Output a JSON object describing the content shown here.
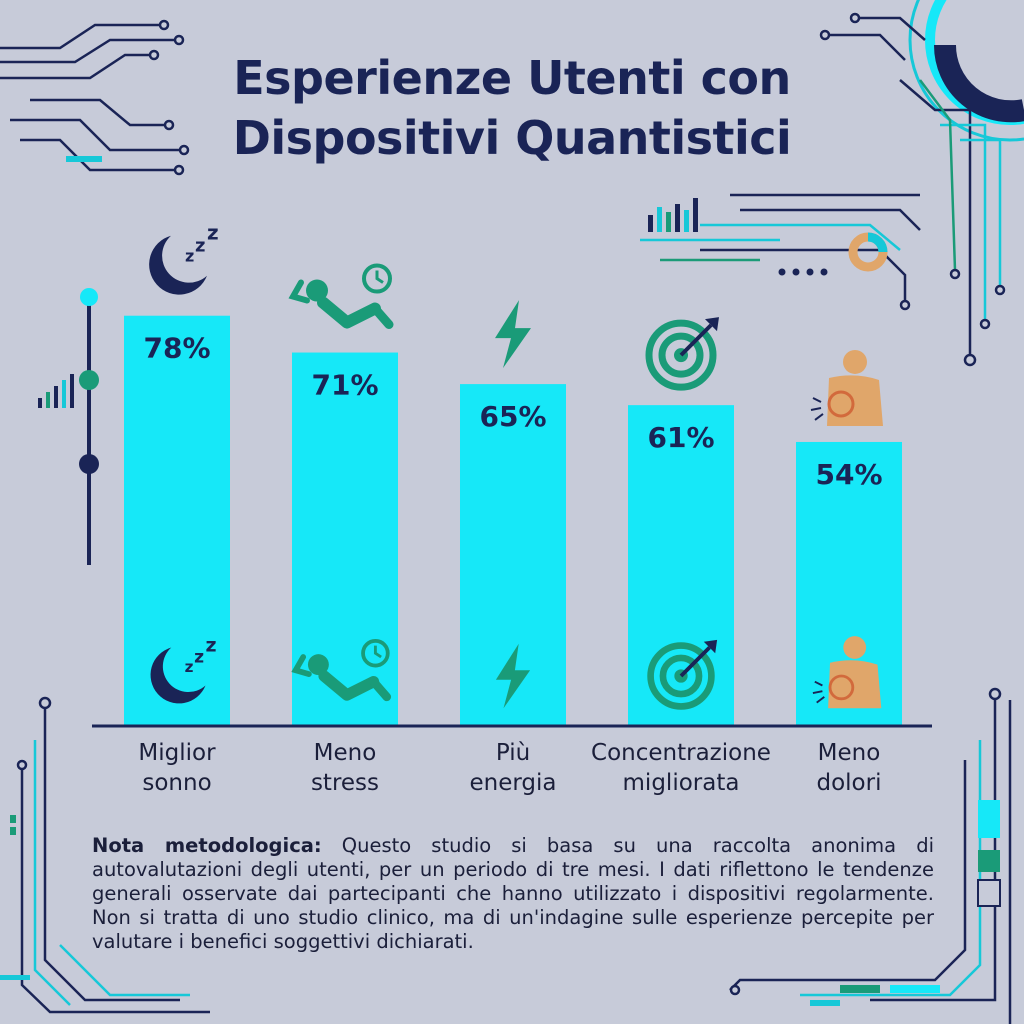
{
  "title": {
    "line1": "Esperienze Utenti con",
    "line2": "Dispositivi Quantistici"
  },
  "chart_data": {
    "type": "bar",
    "categories": [
      [
        "Miglior",
        "sonno"
      ],
      [
        "Meno",
        "stress"
      ],
      [
        "Più",
        "energia"
      ],
      [
        "Concentrazione",
        "migliorata"
      ],
      [
        "Meno",
        "dolori"
      ]
    ],
    "values": [
      78,
      71,
      65,
      61,
      54
    ],
    "value_labels": [
      "78%",
      "71%",
      "65%",
      "61%",
      "54%"
    ],
    "icons": [
      "moon-sleep-icon",
      "relaxing-person-icon",
      "lightning-bolt-icon",
      "target-arrow-icon",
      "back-pain-icon"
    ],
    "ylim": [
      0,
      100
    ],
    "bar_color": "#16e8f8",
    "grid": false,
    "legend": "none"
  },
  "note": {
    "label": "Nota metodologica:",
    "text": "Questo studio si basa su una raccolta anonima di autovalutazioni degli utenti, per un periodo di tre mesi. I dati riflettono le tendenze generali osservate dai partecipanti che hanno utilizzato i dispositivi regolarmente. Non si tratta di uno studio clinico, ma di un'indagine sulle esperienze percepite per valutare i benefici soggettivi dichiarati."
  },
  "colors": {
    "background": "#c7cbd9",
    "navy": "#1a2456",
    "cyan": "#16e8f8",
    "green": "#1a9b78",
    "tan": "#e0a66a"
  }
}
